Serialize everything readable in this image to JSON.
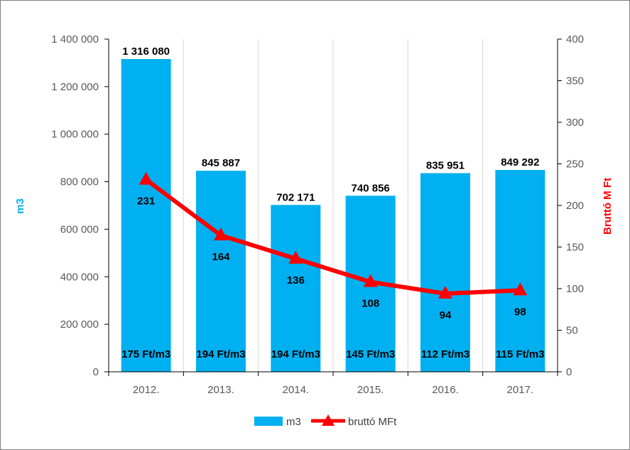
{
  "chart_data": {
    "type": "bar",
    "categories": [
      "2012.",
      "2013.",
      "2014.",
      "2015.",
      "2016.",
      "2017."
    ],
    "series": [
      {
        "name": "m3",
        "type": "bar",
        "axis": "left",
        "values": [
          1316080,
          845887,
          702171,
          740856,
          835951,
          849292
        ],
        "labels": [
          "1 316 080",
          "845 887",
          "702 171",
          "740 856",
          "835 951",
          "849 292"
        ],
        "color": "#00b0f0"
      },
      {
        "name": "bruttó MFt",
        "type": "line",
        "axis": "right",
        "values": [
          231,
          164,
          136,
          108,
          94,
          98
        ],
        "labels": [
          "231",
          "164",
          "136",
          "108",
          "94",
          "98"
        ],
        "color": "#ff0000",
        "marker": "triangle"
      }
    ],
    "unit_price_labels": [
      "175 Ft/m3",
      "194 Ft/m3",
      "194 Ft/m3",
      "145 Ft/m3",
      "112 Ft/m3",
      "115 Ft/m3"
    ],
    "ylabel_left": "m3",
    "ylabel_right": "Bruttó M Ft",
    "ylim_left": [
      0,
      1400000
    ],
    "ylim_right": [
      0,
      400
    ],
    "yticks_left": [
      "0",
      "200 000",
      "400 000",
      "600 000",
      "800 000",
      "1 000 000",
      "1 200 000",
      "1 400 000"
    ],
    "yticks_right": [
      "0",
      "50",
      "100",
      "150",
      "200",
      "250",
      "300",
      "350",
      "400"
    ],
    "grid": true,
    "legend_position": "bottom",
    "legend": [
      "m3",
      "bruttó MFt"
    ]
  }
}
